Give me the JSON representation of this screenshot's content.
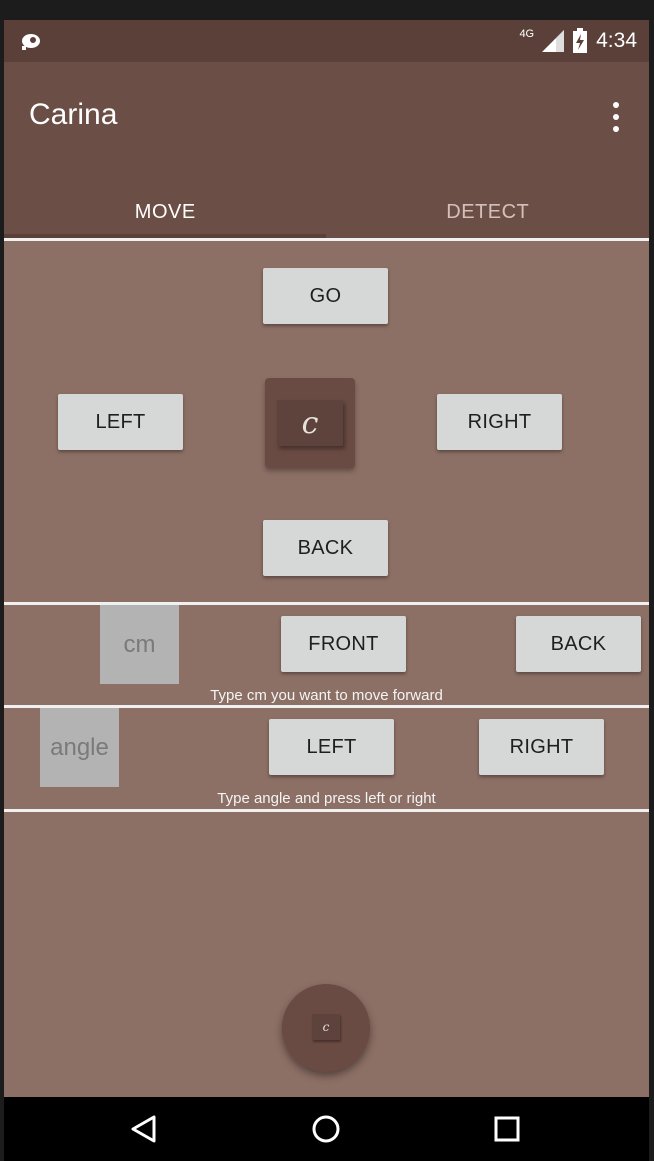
{
  "status_bar": {
    "network": "4G",
    "time": "4:34",
    "icons": [
      "cast-icon",
      "signal-icon",
      "battery-icon"
    ]
  },
  "app_bar": {
    "title": "Carina",
    "menu_icon": "more-vert-icon"
  },
  "tabs": [
    {
      "label": "MOVE",
      "selected": true
    },
    {
      "label": "DETECT",
      "selected": false
    }
  ],
  "joystick": {
    "go_label": "GO",
    "left_label": "LEFT",
    "right_label": "RIGHT",
    "back_label": "BACK",
    "center_glyph": "c"
  },
  "distance": {
    "placeholder": "cm",
    "front_label": "FRONT",
    "back_label": "BACK",
    "hint": "Type cm you want to move forward"
  },
  "rotation": {
    "placeholder": "angle",
    "left_label": "LEFT",
    "right_label": "RIGHT",
    "hint": "Type angle and press left or right"
  },
  "fab": {
    "glyph": "c"
  },
  "nav_bar": {
    "icons": [
      "back-triangle-icon",
      "home-circle-icon",
      "recents-square-icon"
    ]
  },
  "colors": {
    "status_bar": "#5a4038",
    "app_bar": "#6b4e45",
    "content_bg": "#8c6f65",
    "button_bg": "#d6d7d7",
    "input_bg": "#b3b3b3"
  }
}
